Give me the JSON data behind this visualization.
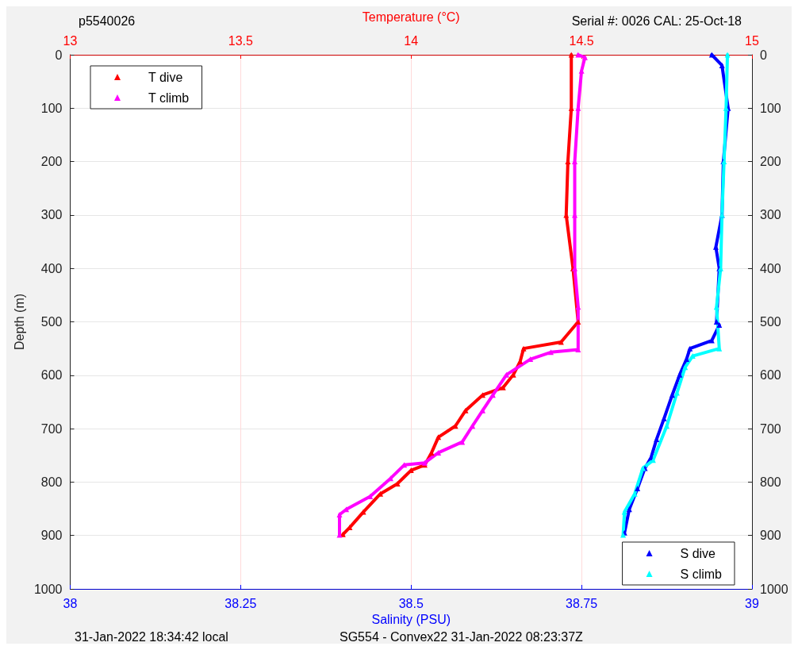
{
  "chart_data": {
    "type": "line",
    "title": "p5540026",
    "subtitle": "Serial #: 0026 CAL: 25-Oct-18",
    "xlabel": "Salinity (PSU)",
    "x2label": "Temperature (°C)",
    "ylabel": "Depth (m)",
    "annotations": [
      "31-Jan-2022 18:34:42 local",
      "SG554 - Convex22 31-Jan-2022 08:23:37Z"
    ],
    "xlim": [
      38,
      39
    ],
    "xticks": [
      38,
      38.25,
      38.5,
      38.75,
      39
    ],
    "x2lim": [
      13,
      15
    ],
    "x2ticks": [
      13,
      13.5,
      14,
      14.5,
      15
    ],
    "ylim": [
      1000,
      0
    ],
    "yticks": [
      0,
      100,
      200,
      300,
      400,
      500,
      600,
      700,
      800,
      900,
      1000
    ],
    "y2lim": [
      1000,
      0
    ],
    "y2ticks": [
      0,
      100,
      200,
      300,
      400,
      500,
      600,
      700,
      800,
      900,
      1000
    ],
    "grid": true,
    "legend": [
      "top left",
      "bottom right"
    ],
    "marker": "triangle",
    "line_style": "solid",
    "series": [
      {
        "name": "T dive",
        "color": "#ff0000",
        "axis": "x2",
        "x": [
          14.47,
          14.47,
          14.46,
          14.455,
          14.475,
          14.49,
          14.44,
          14.33,
          14.32,
          14.3,
          14.27,
          14.21,
          14.16,
          14.13,
          14.08,
          14.06,
          14.04,
          14.0,
          13.96,
          13.91,
          13.86,
          13.82,
          13.8
        ],
        "values": [
          0,
          100,
          200,
          300,
          400,
          500,
          538,
          550,
          574,
          599,
          623,
          637,
          666,
          695,
          716,
          745,
          768,
          778,
          803,
          822,
          856,
          885,
          898
        ]
      },
      {
        "name": "T climb",
        "color": "#ff00ff",
        "axis": "x2",
        "x": [
          13.79,
          13.79,
          13.81,
          13.88,
          13.94,
          13.98,
          14.04,
          14.08,
          14.15,
          14.18,
          14.21,
          14.24,
          14.28,
          14.35,
          14.41,
          14.49,
          14.49,
          14.48,
          14.48,
          14.48,
          14.49,
          14.5,
          14.51,
          14.49
        ],
        "values": [
          899,
          861,
          851,
          827,
          793,
          768,
          764,
          745,
          725,
          695,
          666,
          637,
          599,
          570,
          557,
          552,
          472,
          400,
          300,
          200,
          100,
          30,
          5,
          0
        ]
      },
      {
        "name": "S dive",
        "color": "#0000ff",
        "x": [
          38.941,
          38.956,
          38.965,
          38.958,
          38.956,
          38.947,
          38.952,
          38.948,
          38.952,
          38.941,
          38.909,
          38.904,
          38.894,
          38.883,
          38.871,
          38.86,
          38.852,
          38.843,
          38.832,
          38.82,
          38.813
        ],
        "values": [
          0,
          20,
          100,
          200,
          300,
          360,
          400,
          500,
          506,
          535,
          550,
          570,
          599,
          637,
          681,
          720,
          754,
          774,
          812,
          851,
          895
        ]
      },
      {
        "name": "S climb",
        "color": "#00ffff",
        "x": [
          38.811,
          38.813,
          38.828,
          38.84,
          38.855,
          38.875,
          38.89,
          38.902,
          38.913,
          38.952,
          38.948,
          38.954,
          38.956,
          38.959,
          38.962,
          38.964
        ],
        "values": [
          899,
          856,
          822,
          774,
          759,
          695,
          633,
          585,
          564,
          550,
          472,
          400,
          300,
          200,
          100,
          0
        ]
      }
    ]
  }
}
